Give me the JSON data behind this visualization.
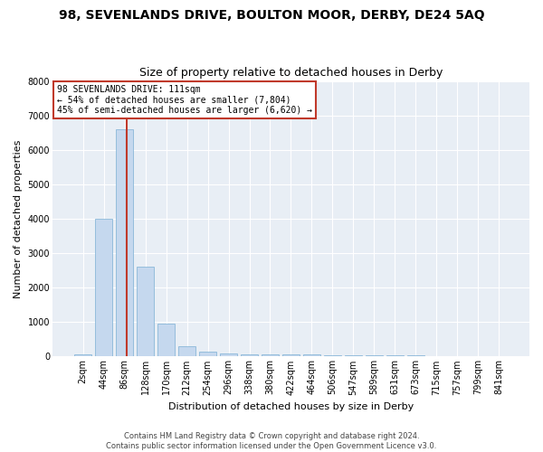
{
  "title": "98, SEVENLANDS DRIVE, BOULTON MOOR, DERBY, DE24 5AQ",
  "subtitle": "Size of property relative to detached houses in Derby",
  "xlabel": "Distribution of detached houses by size in Derby",
  "ylabel": "Number of detached properties",
  "categories": [
    "2sqm",
    "44sqm",
    "86sqm",
    "128sqm",
    "170sqm",
    "212sqm",
    "254sqm",
    "296sqm",
    "338sqm",
    "380sqm",
    "422sqm",
    "464sqm",
    "506sqm",
    "547sqm",
    "589sqm",
    "631sqm",
    "673sqm",
    "715sqm",
    "757sqm",
    "799sqm",
    "841sqm"
  ],
  "bar_heights": [
    60,
    4000,
    6600,
    2620,
    950,
    300,
    130,
    100,
    70,
    60,
    55,
    50,
    45,
    40,
    35,
    30,
    25,
    20,
    18,
    15,
    12
  ],
  "bar_color": "#c5d8ee",
  "bar_edge_color": "#7bafd4",
  "vline_color": "#c0392b",
  "ylim": [
    0,
    8000
  ],
  "yticks": [
    0,
    1000,
    2000,
    3000,
    4000,
    5000,
    6000,
    7000,
    8000
  ],
  "annotation_title": "98 SEVENLANDS DRIVE: 111sqm",
  "annotation_line1": "← 54% of detached houses are smaller (7,804)",
  "annotation_line2": "45% of semi-detached houses are larger (6,620) →",
  "annotation_box_color": "#c0392b",
  "footer1": "Contains HM Land Registry data © Crown copyright and database right 2024.",
  "footer2": "Contains public sector information licensed under the Open Government Licence v3.0.",
  "fig_bg_color": "#ffffff",
  "plot_bg_color": "#e8eef5",
  "title_fontsize": 10,
  "subtitle_fontsize": 9,
  "axis_label_fontsize": 8,
  "tick_fontsize": 7,
  "annotation_fontsize": 7,
  "footer_fontsize": 6,
  "vline_x": 2.085
}
